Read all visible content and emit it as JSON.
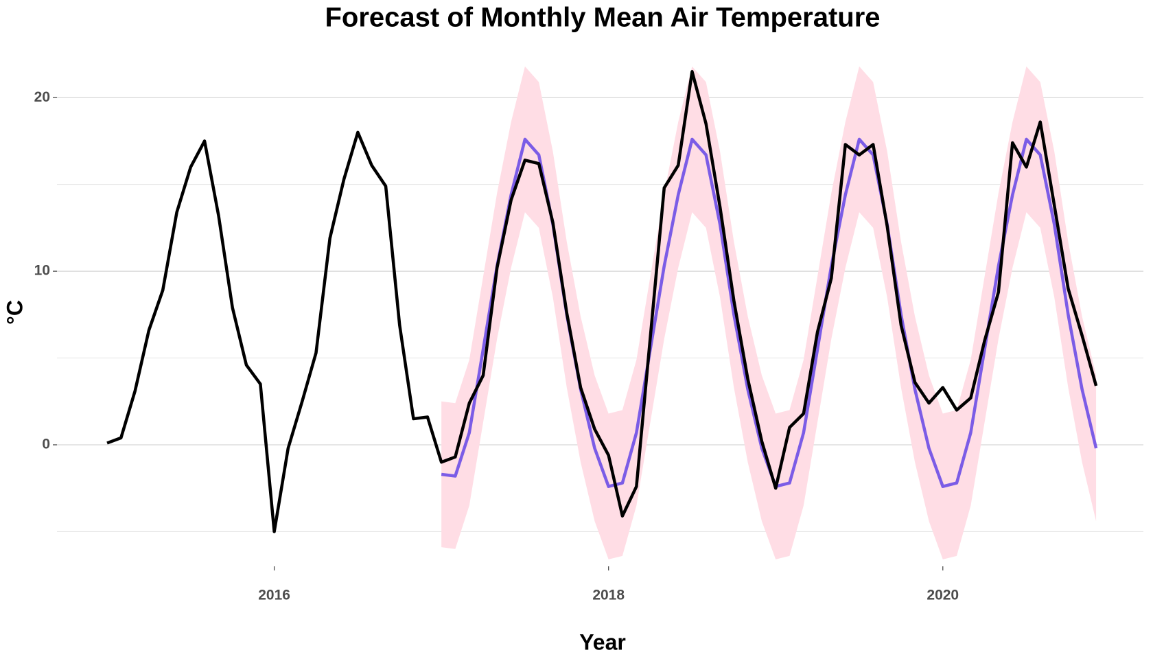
{
  "chart_data": {
    "type": "line",
    "title": "Forecast of Monthly Mean Air Temperature",
    "x_label": "Year",
    "y_label": "°C",
    "xlim": [
      2014.7,
      2021.2
    ],
    "xticks": [
      2016,
      2018,
      2020
    ],
    "ylim": [
      -7,
      22.5
    ],
    "yticks": [
      0,
      10,
      20
    ],
    "minor_yticks": [
      -5,
      5,
      15
    ],
    "grid": true,
    "interval": {
      "color": "#ffdde5",
      "x": [
        2017,
        2017.083,
        2017.167,
        2017.25,
        2017.333,
        2017.417,
        2017.5,
        2017.583,
        2017.667,
        2017.75,
        2017.833,
        2017.917,
        2018,
        2018.083,
        2018.167,
        2018.25,
        2018.333,
        2018.417,
        2018.5,
        2018.583,
        2018.667,
        2018.75,
        2018.833,
        2018.917,
        2019,
        2019.083,
        2019.167,
        2019.25,
        2019.333,
        2019.417,
        2019.5,
        2019.583,
        2019.667,
        2019.75,
        2019.833,
        2019.917,
        2020,
        2020.083,
        2020.167,
        2020.25,
        2020.333,
        2020.417,
        2020.5,
        2020.583,
        2020.667,
        2020.75,
        2020.833,
        2020.917
      ],
      "lower": [
        -5.9,
        -6.0,
        -3.5,
        1.3,
        6.1,
        10.2,
        13.4,
        12.5,
        8.5,
        3.3,
        -1.0,
        -4.4,
        -6.6,
        -6.4,
        -3.5,
        1.3,
        6.1,
        10.2,
        13.4,
        12.5,
        8.5,
        3.3,
        -1.0,
        -4.4,
        -6.6,
        -6.4,
        -3.5,
        1.3,
        6.1,
        10.2,
        13.4,
        12.5,
        8.5,
        3.3,
        -1.0,
        -4.4,
        -6.6,
        -6.4,
        -3.5,
        1.3,
        6.1,
        10.2,
        13.4,
        12.5,
        8.5,
        3.3,
        -1.0,
        -4.4
      ],
      "upper": [
        2.5,
        2.4,
        4.9,
        9.7,
        14.5,
        18.6,
        21.8,
        20.9,
        16.9,
        11.7,
        7.4,
        4.0,
        1.8,
        2.0,
        4.9,
        9.7,
        14.5,
        18.6,
        21.8,
        20.9,
        16.9,
        11.7,
        7.4,
        4.0,
        1.8,
        2.0,
        4.9,
        9.7,
        14.5,
        18.6,
        21.8,
        20.9,
        16.9,
        11.7,
        7.4,
        4.0,
        1.8,
        2.0,
        4.9,
        9.7,
        14.5,
        18.6,
        21.8,
        20.9,
        16.9,
        11.7,
        7.4,
        4.0
      ]
    },
    "series": [
      {
        "color": "#7b5ce6",
        "x": [
          2017,
          2017.083,
          2017.167,
          2017.25,
          2017.333,
          2017.417,
          2017.5,
          2017.583,
          2017.667,
          2017.75,
          2017.833,
          2017.917,
          2018,
          2018.083,
          2018.167,
          2018.25,
          2018.333,
          2018.417,
          2018.5,
          2018.583,
          2018.667,
          2018.75,
          2018.833,
          2018.917,
          2019,
          2019.083,
          2019.167,
          2019.25,
          2019.333,
          2019.417,
          2019.5,
          2019.583,
          2019.667,
          2019.75,
          2019.833,
          2019.917,
          2020,
          2020.083,
          2020.167,
          2020.25,
          2020.333,
          2020.417,
          2020.5,
          2020.583,
          2020.667,
          2020.75,
          2020.833,
          2020.917
        ],
        "values": [
          -1.7,
          -1.8,
          0.7,
          5.5,
          10.3,
          14.4,
          17.6,
          16.7,
          12.7,
          7.5,
          3.2,
          -0.2,
          -2.4,
          -2.2,
          0.7,
          5.5,
          10.3,
          14.4,
          17.6,
          16.7,
          12.7,
          7.5,
          3.2,
          -0.2,
          -2.4,
          -2.2,
          0.7,
          5.5,
          10.3,
          14.4,
          17.6,
          16.7,
          12.7,
          7.5,
          3.2,
          -0.2,
          -2.4,
          -2.2,
          0.7,
          5.5,
          10.3,
          14.4,
          17.6,
          16.7,
          12.7,
          7.5,
          3.2,
          -0.2
        ]
      },
      {
        "color": "#000000",
        "x": [
          2015,
          2015.083,
          2015.167,
          2015.25,
          2015.333,
          2015.417,
          2015.5,
          2015.583,
          2015.667,
          2015.75,
          2015.833,
          2015.917,
          2016,
          2016.083,
          2016.167,
          2016.25,
          2016.333,
          2016.417,
          2016.5,
          2016.583,
          2016.667,
          2016.75,
          2016.833,
          2016.917,
          2017,
          2017.083,
          2017.167,
          2017.25,
          2017.333,
          2017.417,
          2017.5,
          2017.583,
          2017.667,
          2017.75,
          2017.833,
          2017.917,
          2018,
          2018.083,
          2018.167,
          2018.25,
          2018.333,
          2018.417,
          2018.5,
          2018.583,
          2018.667,
          2018.75,
          2018.833,
          2018.917,
          2019,
          2019.083,
          2019.167,
          2019.25,
          2019.333,
          2019.417,
          2019.5,
          2019.583,
          2019.667,
          2019.75,
          2019.833,
          2019.917,
          2020,
          2020.083,
          2020.167,
          2020.25,
          2020.333,
          2020.417,
          2020.5,
          2020.583,
          2020.667,
          2020.75,
          2020.833,
          2020.917
        ],
        "values": [
          0.1,
          0.4,
          3.1,
          6.6,
          8.9,
          13.4,
          16.0,
          17.5,
          13.2,
          7.9,
          4.6,
          3.5,
          -5.0,
          -0.2,
          2.5,
          5.3,
          11.9,
          15.3,
          18.0,
          16.1,
          14.9,
          6.9,
          1.5,
          1.6,
          -1.0,
          -0.7,
          2.4,
          4.0,
          10.2,
          14.1,
          16.4,
          16.2,
          12.8,
          7.6,
          3.3,
          0.9,
          -0.6,
          -4.1,
          -2.4,
          6.2,
          14.8,
          16.1,
          21.5,
          18.5,
          13.7,
          8.3,
          3.8,
          0.2,
          -2.5,
          1.0,
          1.8,
          6.5,
          9.6,
          17.3,
          16.7,
          17.3,
          12.6,
          6.9,
          3.6,
          2.4,
          3.3,
          2.0,
          2.7,
          6.0,
          8.8,
          17.4,
          16.0,
          18.6,
          13.8,
          9.0,
          6.3,
          3.4
        ]
      }
    ]
  }
}
